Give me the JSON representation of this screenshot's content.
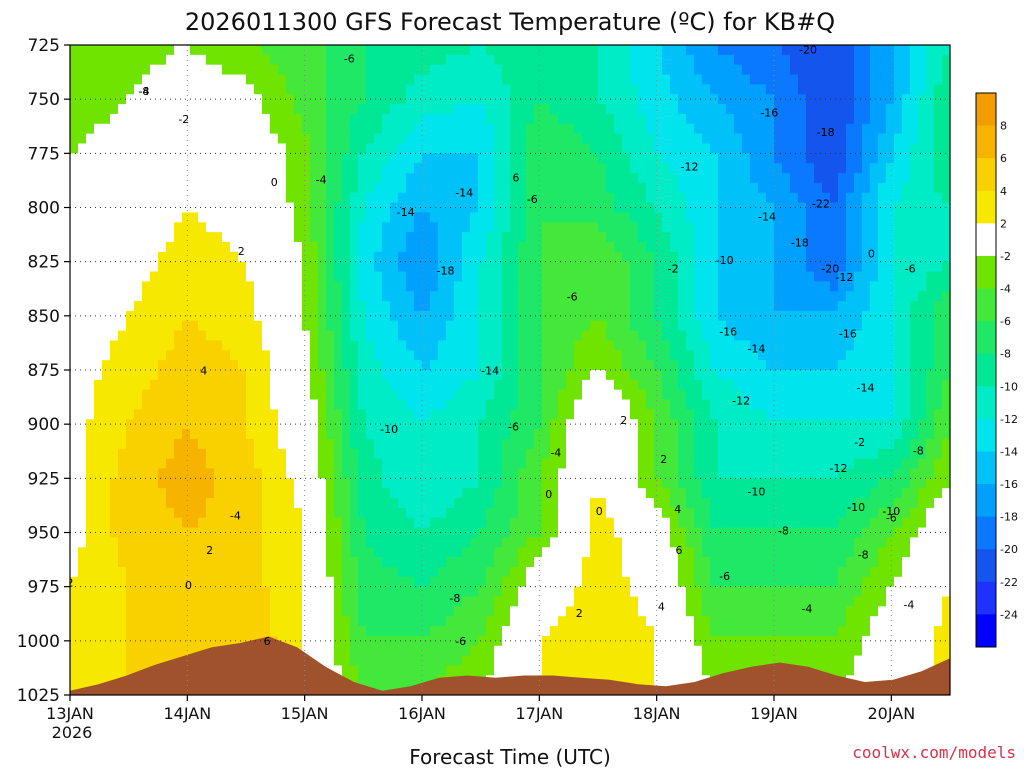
{
  "chart_data": {
    "type": "heatmap",
    "title": "2026011300 GFS Forecast Temperature (ºC) for KB#Q",
    "xlabel": "Forecast Time (UTC)",
    "ylabel": "",
    "credit": "coolwx.com/models",
    "x_ticks": [
      "13JAN",
      "14JAN",
      "15JAN",
      "16JAN",
      "17JAN",
      "18JAN",
      "19JAN",
      "20JAN"
    ],
    "x_tick_year": "2026",
    "y_ticks": [
      "725",
      "750",
      "775",
      "800",
      "825",
      "850",
      "875",
      "900",
      "925",
      "950",
      "975",
      "1000",
      "1025"
    ],
    "ylim": [
      725,
      1025
    ],
    "y_inverted": true,
    "levels": [
      725,
      750,
      775,
      800,
      825,
      850,
      875,
      900,
      925,
      950,
      975,
      1000,
      1025
    ],
    "x": [
      0,
      0.5,
      1,
      1.5,
      2,
      2.5,
      3,
      3.5,
      4,
      4.5,
      5,
      5.5,
      6,
      6.5,
      7,
      7.5
    ],
    "values": [
      [
        -4,
        -3,
        -2,
        -4,
        -5,
        -8,
        -9,
        -10,
        -8,
        -10,
        -14,
        -18,
        -20,
        -22,
        -16,
        -10
      ],
      [
        -3,
        -2,
        0,
        -1,
        -5,
        -8,
        -11,
        -12,
        -8,
        -10,
        -13,
        -16,
        -18,
        -22,
        -16,
        -8
      ],
      [
        -2,
        -1,
        1,
        0,
        -3,
        -10,
        -14,
        -14,
        -6,
        -8,
        -12,
        -14,
        -18,
        -22,
        -14,
        -8
      ],
      [
        -1,
        0,
        2,
        1,
        -3,
        -12,
        -16,
        -14,
        -6,
        -7,
        -10,
        -14,
        -16,
        -20,
        -12,
        -10
      ],
      [
        0,
        1,
        3,
        2,
        -2,
        -13,
        -18,
        -12,
        -6,
        -4,
        -8,
        -14,
        -16,
        -20,
        -12,
        -10
      ],
      [
        0,
        2,
        4,
        3,
        -2,
        -12,
        -16,
        -12,
        -6,
        -4,
        -8,
        -14,
        -16,
        -16,
        -12,
        -6
      ],
      [
        1,
        3,
        5,
        4,
        -1,
        -11,
        -14,
        -12,
        -6,
        -2,
        -6,
        -12,
        -14,
        -14,
        -12,
        -6
      ],
      [
        1,
        4,
        6,
        4,
        0,
        -10,
        -12,
        -10,
        -6,
        2,
        -4,
        -10,
        -12,
        -12,
        -12,
        -4
      ],
      [
        1,
        5,
        7,
        5,
        1,
        -9,
        -12,
        -10,
        -4,
        2,
        -4,
        -10,
        -10,
        -10,
        -8,
        -2
      ],
      [
        1,
        5,
        6,
        5,
        2,
        -8,
        -10,
        -8,
        -4,
        3,
        0,
        -8,
        -8,
        -8,
        -4,
        1
      ],
      [
        2,
        4,
        5,
        5,
        2,
        -7,
        -8,
        -6,
        0,
        3,
        1,
        -6,
        -6,
        -6,
        -2,
        2
      ],
      [
        3,
        4,
        5,
        6,
        2,
        -6,
        -6,
        -4,
        2,
        4,
        2,
        -4,
        -4,
        -4,
        0,
        3
      ],
      [
        3,
        4,
        5,
        6,
        2,
        -4,
        -4,
        -2,
        2,
        4,
        2,
        -2,
        -2,
        -2,
        0,
        3
      ]
    ],
    "colorbar": {
      "ticks": [
        8,
        6,
        4,
        2,
        -2,
        -4,
        -6,
        -8,
        -10,
        -12,
        -14,
        -16,
        -18,
        -20,
        -22,
        -24
      ],
      "bands": [
        {
          "from": 8,
          "to": 10,
          "color": "#f39c00"
        },
        {
          "from": 6,
          "to": 8,
          "color": "#f6b400"
        },
        {
          "from": 4,
          "to": 6,
          "color": "#f9d000"
        },
        {
          "from": 2,
          "to": 4,
          "color": "#f7e800"
        },
        {
          "from": -2,
          "to": 2,
          "color": "#ffffff"
        },
        {
          "from": -4,
          "to": -2,
          "color": "#6fe400"
        },
        {
          "from": -6,
          "to": -4,
          "color": "#44e83a"
        },
        {
          "from": -8,
          "to": -6,
          "color": "#1fe866"
        },
        {
          "from": -10,
          "to": -8,
          "color": "#00e896"
        },
        {
          "from": -12,
          "to": -10,
          "color": "#00ecc6"
        },
        {
          "from": -14,
          "to": -12,
          "color": "#00e4ee"
        },
        {
          "from": -16,
          "to": -14,
          "color": "#00c2f8"
        },
        {
          "from": -18,
          "to": -16,
          "color": "#00a0ff"
        },
        {
          "from": -20,
          "to": -18,
          "color": "#0a78ff"
        },
        {
          "from": -22,
          "to": -20,
          "color": "#1455ee"
        },
        {
          "from": -24,
          "to": -22,
          "color": "#1e32ff"
        },
        {
          "from": -26,
          "to": -24,
          "color": "#0000ff"
        }
      ]
    },
    "terrain_color": "#a0522d",
    "grid": true,
    "contour_labels": [
      "-4",
      "-6",
      "-8",
      "-2",
      "0",
      "2",
      "-4",
      "-14",
      "-14",
      "-18",
      "-14",
      "-10",
      "-6",
      "-6",
      "-4",
      "2",
      "0",
      "2",
      "4",
      "6",
      "4",
      "2",
      "0",
      "-8",
      "-6",
      "-20",
      "-16",
      "-12",
      "-14",
      "-10",
      "-16",
      "-14",
      "-12",
      "-10",
      "-8",
      "-6",
      "-4",
      "-18",
      "-22",
      "-18",
      "-20",
      "-16",
      "-14",
      "-12",
      "-10",
      "-8",
      "-6",
      "-4",
      "-2",
      "0",
      "-12",
      "-10",
      "-8",
      "-6",
      "-4",
      "6",
      "2",
      "0",
      "2",
      "4",
      "6",
      "-6",
      "-2",
      "-8"
    ]
  }
}
